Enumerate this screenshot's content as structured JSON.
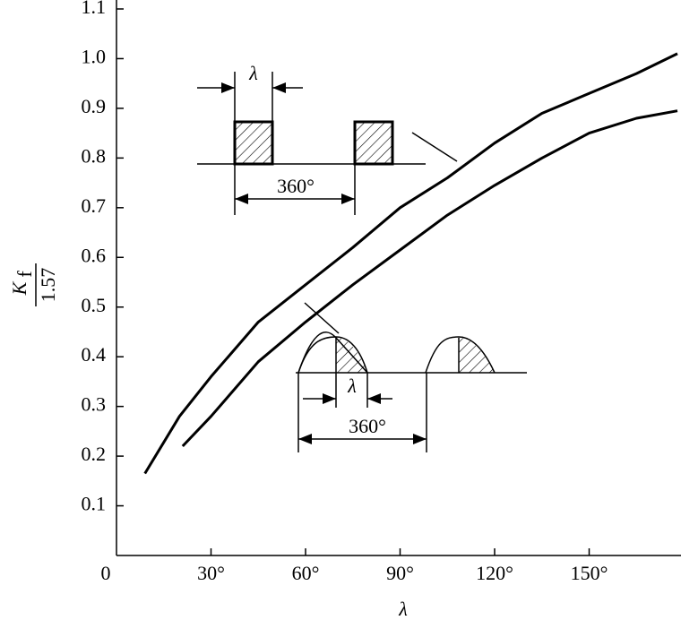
{
  "chart_data": {
    "type": "line",
    "xlabel": "λ",
    "ylabel_numerator": "K",
    "ylabel_subscript": "f",
    "ylabel_denominator": "1.57",
    "color": "#000000",
    "series": [
      {
        "x": [
          9,
          20,
          30,
          45,
          60,
          75,
          90,
          105,
          120,
          135,
          150,
          165,
          178
        ],
        "values": [
          0.165,
          0.28,
          0.36,
          0.47,
          0.545,
          0.62,
          0.7,
          0.76,
          0.83,
          0.89,
          0.93,
          0.97,
          1.01
        ]
      },
      {
        "x": [
          21,
          30,
          45,
          60,
          75,
          90,
          105,
          120,
          135,
          150,
          165,
          178
        ],
        "values": [
          0.22,
          0.28,
          0.39,
          0.47,
          0.545,
          0.615,
          0.685,
          0.745,
          0.8,
          0.85,
          0.88,
          0.895
        ]
      }
    ],
    "xlim": [
      0,
      180
    ],
    "ylim": [
      0,
      1.1
    ],
    "xticks": [
      0,
      {
        "value": 30,
        "label": "30°"
      },
      {
        "value": 60,
        "label": "60°"
      },
      {
        "value": 90,
        "label": "90°"
      },
      {
        "value": 120,
        "label": "120°"
      },
      {
        "value": 150,
        "label": "150°"
      }
    ],
    "yticks": [
      0.1,
      0.2,
      0.3,
      0.4,
      0.5,
      0.6,
      0.7,
      0.8,
      0.9,
      {
        "value": 1,
        "label": "1.0"
      },
      1.1
    ],
    "annotations": [
      "λ",
      "360°",
      "λ",
      "360°"
    ]
  }
}
